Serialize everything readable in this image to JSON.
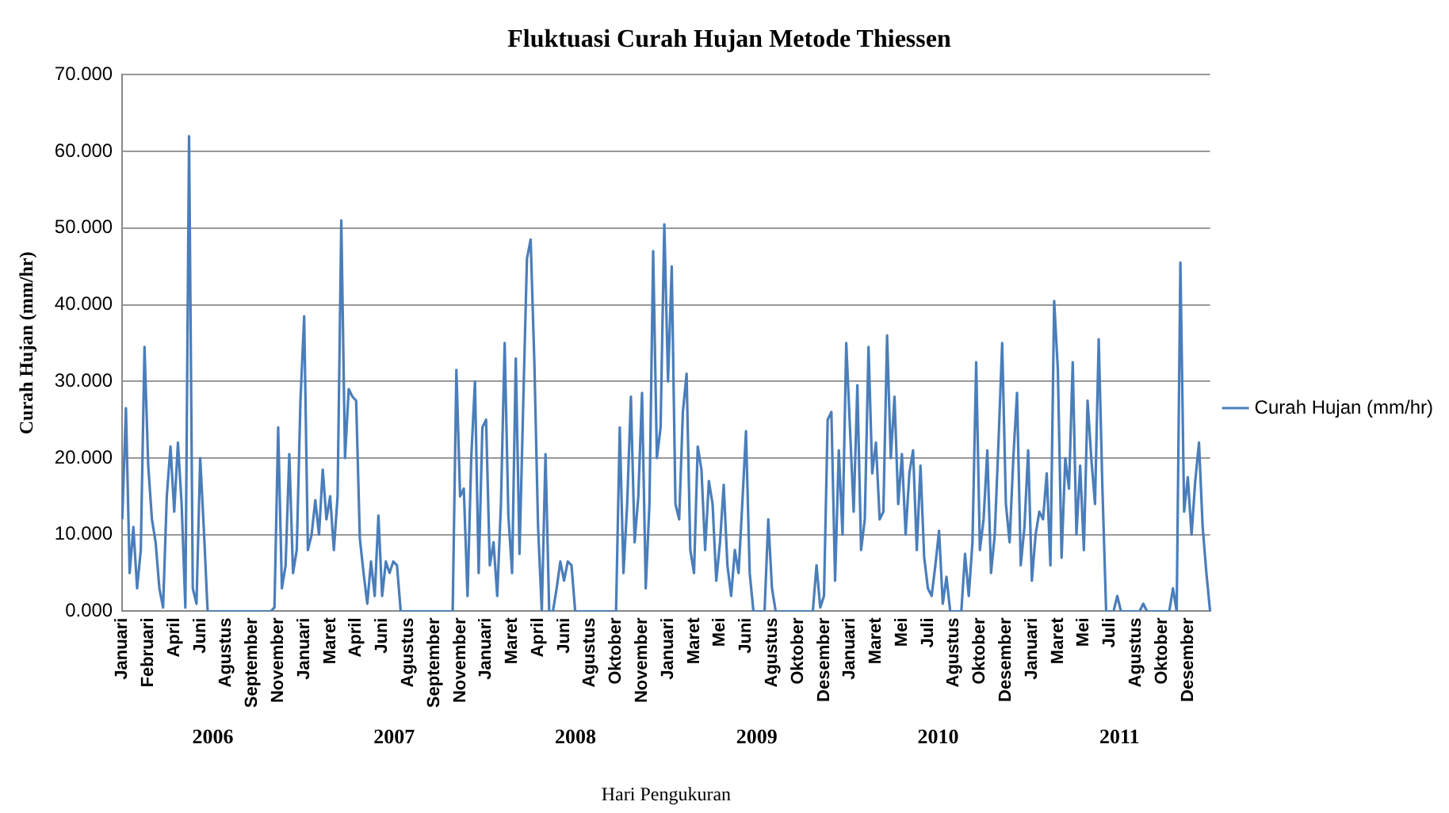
{
  "chart_data": {
    "type": "line",
    "title": "Fluktuasi Curah Hujan Metode Thiessen",
    "xlabel": "Hari Pengukuran",
    "ylabel": "Curah Hujan (mm/hr)",
    "categories": [
      "Januari",
      null,
      null,
      null,
      null,
      null,
      null,
      "Februari",
      null,
      null,
      null,
      null,
      null,
      null,
      "April",
      null,
      null,
      null,
      null,
      null,
      null,
      "Juni",
      null,
      null,
      null,
      null,
      null,
      null,
      "Agustus",
      null,
      null,
      null,
      null,
      null,
      null,
      "September",
      null,
      null,
      null,
      null,
      null,
      null,
      "November",
      null,
      null,
      null,
      null,
      null,
      null,
      "Januari",
      null,
      null,
      null,
      null,
      null,
      null,
      "Maret",
      null,
      null,
      null,
      null,
      null,
      null,
      "April",
      null,
      null,
      null,
      null,
      null,
      null,
      "Juni",
      null,
      null,
      null,
      null,
      null,
      null,
      "Agustus",
      null,
      null,
      null,
      null,
      null,
      null,
      "September",
      null,
      null,
      null,
      null,
      null,
      null,
      "November",
      null,
      null,
      null,
      null,
      null,
      null,
      "Januari",
      null,
      null,
      null,
      null,
      null,
      null,
      "Maret",
      null,
      null,
      null,
      null,
      null,
      null,
      "April",
      null,
      null,
      null,
      null,
      null,
      null,
      "Juni",
      null,
      null,
      null,
      null,
      null,
      null,
      "Agustus",
      null,
      null,
      null,
      null,
      null,
      null,
      "Oktober",
      null,
      null,
      null,
      null,
      null,
      null,
      "November",
      null,
      null,
      null,
      null,
      null,
      null,
      "Januari",
      null,
      null,
      null,
      null,
      null,
      null,
      "Maret",
      null,
      null,
      null,
      null,
      null,
      null,
      "Mei",
      null,
      null,
      null,
      null,
      null,
      null,
      "Juni",
      null,
      null,
      null,
      null,
      null,
      null,
      "Agustus",
      null,
      null,
      null,
      null,
      null,
      null,
      "Oktober",
      null,
      null,
      null,
      null,
      null,
      null,
      "Desember",
      null,
      null,
      null,
      null,
      null,
      null,
      "Januari",
      null,
      null,
      null,
      null,
      null,
      null,
      "Maret",
      null,
      null,
      null,
      null,
      null,
      null,
      "Mei",
      null,
      null,
      null,
      null,
      null,
      null,
      "Juli",
      null,
      null,
      null,
      null,
      null,
      null,
      "Agustus",
      null,
      null,
      null,
      null,
      null,
      null,
      "Oktober",
      null,
      null,
      null,
      null,
      null,
      null,
      "Desember",
      null,
      null,
      null,
      null,
      null,
      null,
      "Januari",
      null,
      null,
      null,
      null,
      null,
      null,
      "Maret",
      null,
      null,
      null,
      null,
      null,
      null,
      "Mei",
      null,
      null,
      null,
      null,
      null,
      null,
      "Juli",
      null,
      null,
      null,
      null,
      null,
      null,
      "Agustus",
      null,
      null,
      null,
      null,
      null,
      null,
      "Oktober",
      null,
      null,
      null,
      null,
      null,
      null,
      "Desember",
      null,
      null,
      null,
      null,
      null,
      null
    ],
    "series": [
      {
        "name": "Curah Hujan (mm/hr)",
        "color": "#4a7ebb",
        "values": [
          12,
          26.5,
          5,
          11,
          3,
          8,
          34.5,
          19,
          12,
          9,
          3,
          0.5,
          15,
          21.5,
          13,
          22,
          14,
          0.5,
          62,
          3,
          1,
          20,
          10.5,
          0,
          0,
          0,
          0,
          0,
          0,
          0,
          0,
          0,
          0,
          0,
          0,
          0,
          0,
          0,
          0,
          0,
          0,
          0.5,
          24,
          3,
          6,
          20.5,
          5,
          8,
          27.5,
          38.5,
          8,
          10,
          14.5,
          10,
          18.5,
          12,
          15,
          8,
          15,
          51,
          20,
          29,
          28,
          27.5,
          9.5,
          5,
          1,
          6.5,
          2,
          12.5,
          2,
          6.5,
          5,
          6.5,
          6,
          0,
          0,
          0,
          0,
          0,
          0,
          0,
          0,
          0,
          0,
          0,
          0,
          0,
          0,
          0,
          31.5,
          15,
          16,
          2,
          20,
          30,
          5,
          24,
          25,
          6,
          9,
          2,
          14,
          35,
          12.5,
          5,
          33,
          7.5,
          27,
          46,
          48.5,
          32.5,
          11,
          0,
          20.5,
          0,
          0,
          3,
          6.5,
          4,
          6.5,
          6,
          0,
          0,
          0,
          0,
          0,
          0,
          0,
          0,
          0,
          0,
          0,
          0,
          24,
          5,
          14,
          28,
          9,
          15,
          28.5,
          3,
          14,
          47,
          20,
          24,
          50.5,
          30,
          45,
          14,
          12,
          26,
          31,
          8,
          5,
          21.5,
          18.5,
          8,
          17,
          14,
          4,
          9,
          16.5,
          6,
          2,
          8,
          5,
          14,
          23.5,
          5,
          0,
          0,
          0,
          0,
          12,
          3,
          0,
          0,
          0,
          0,
          0,
          0,
          0,
          0,
          0,
          0,
          0,
          6,
          0.5,
          2,
          25,
          26,
          4,
          21,
          10,
          35,
          24,
          13,
          29.5,
          8,
          12,
          34.5,
          18,
          22,
          12,
          13,
          36,
          20,
          28,
          14,
          20.5,
          10,
          18,
          21,
          8,
          19,
          7,
          3,
          2,
          6,
          10.5,
          1,
          4.5,
          0,
          0,
          0,
          0,
          7.5,
          2,
          9,
          32.5,
          8,
          12,
          21,
          5,
          10,
          22,
          35,
          14,
          9,
          20,
          28.5,
          6,
          11,
          21,
          4,
          10,
          13,
          12,
          18,
          6,
          40.5,
          31.5,
          7,
          20,
          16,
          32.5,
          10,
          19,
          8,
          27.5,
          20,
          14,
          35.5,
          16,
          0,
          0,
          0,
          2,
          0,
          0,
          0,
          0,
          0,
          0,
          1,
          0,
          0,
          0,
          0,
          0,
          0,
          0,
          3,
          0,
          45.5,
          13,
          17.5,
          10,
          17,
          22,
          11,
          5,
          0
        ]
      }
    ],
    "ylim": [
      0,
      70
    ],
    "yticks": [
      {
        "value": 0,
        "label": "0.000"
      },
      {
        "value": 10,
        "label": "10.000"
      },
      {
        "value": 20,
        "label": "20.000"
      },
      {
        "value": 30,
        "label": "30.000"
      },
      {
        "value": 40,
        "label": "40.000"
      },
      {
        "value": 50,
        "label": "50.000"
      },
      {
        "value": 60,
        "label": "60.000"
      },
      {
        "value": 70,
        "label": "70.000"
      }
    ],
    "grid": "y",
    "legend": "right",
    "marker": "none",
    "line_style": "solid",
    "annotations": [
      "2006",
      "2007",
      "2008",
      "2009",
      "2010",
      "2011"
    ]
  }
}
